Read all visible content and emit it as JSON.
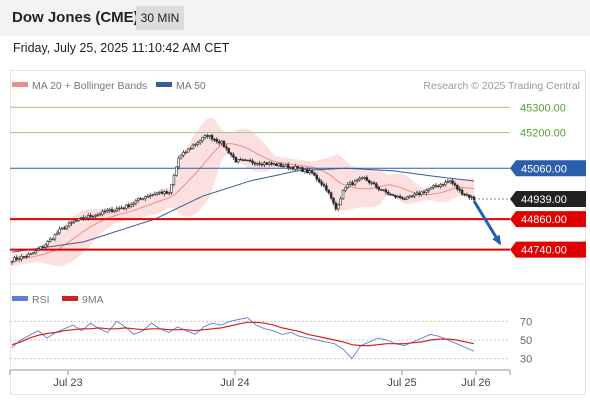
{
  "header": {
    "title": "Dow Jones (CME)",
    "timeframe": "30 MIN"
  },
  "datetime": "Friday, July 25, 2025 11:10:42 AM CET",
  "copyright": "Research © 2025 Trading Central",
  "colors": {
    "candle_up": "#333333",
    "candle_down": "#333333",
    "bollinger_fill": "#fbd5d5",
    "ma20": "#f08b8b",
    "ma50": "#3b5b9a",
    "resistance": "#9cc97a",
    "pivot": "#2b5fae",
    "support": "#e00000",
    "last_price": "#222222",
    "rsi": "#5b7fd6",
    "rsi_ma": "#d62020",
    "arrow": "#2560b0"
  },
  "chart_data": [
    {
      "type": "candlestick",
      "legend": [
        {
          "label": "MA 20 + Bollinger Bands",
          "color": "#f08b8b"
        },
        {
          "label": "MA 50",
          "color": "#3b5b9a"
        }
      ],
      "x_ticks": [
        "Jul 23",
        "Jul 24",
        "Jul 25",
        "Jul 26"
      ],
      "ylim": [
        44640,
        45360
      ],
      "levels": [
        {
          "label": "45300.00",
          "value": 45300,
          "kind": "resistance"
        },
        {
          "label": "45200.00",
          "value": 45200,
          "kind": "resistance"
        },
        {
          "label": "45060.00",
          "value": 45060,
          "kind": "pivot"
        },
        {
          "label": "44939.00",
          "value": 44939,
          "kind": "last"
        },
        {
          "label": "44860.00",
          "value": 44860,
          "kind": "support"
        },
        {
          "label": "44740.00",
          "value": 44740,
          "kind": "support"
        }
      ],
      "price_path": [
        [
          0,
          44700
        ],
        [
          8,
          44720
        ],
        [
          14,
          44760
        ],
        [
          20,
          44815
        ],
        [
          26,
          44850
        ],
        [
          32,
          44870
        ],
        [
          40,
          44890
        ],
        [
          48,
          44910
        ],
        [
          56,
          44950
        ],
        [
          62,
          44965
        ],
        [
          66,
          44960
        ],
        [
          70,
          45100
        ],
        [
          76,
          45150
        ],
        [
          82,
          45190
        ],
        [
          88,
          45160
        ],
        [
          94,
          45090
        ],
        [
          100,
          45085
        ],
        [
          106,
          45080
        ],
        [
          114,
          45070
        ],
        [
          120,
          45060
        ],
        [
          126,
          45040
        ],
        [
          132,
          44980
        ],
        [
          136,
          44900
        ],
        [
          140,
          44990
        ],
        [
          148,
          45020
        ],
        [
          154,
          44980
        ],
        [
          160,
          44950
        ],
        [
          166,
          44940
        ],
        [
          172,
          44965
        ],
        [
          178,
          44990
        ],
        [
          184,
          45010
        ],
        [
          188,
          44970
        ],
        [
          194,
          44939
        ]
      ],
      "ma50_path": [
        [
          0,
          44730
        ],
        [
          30,
          44770
        ],
        [
          60,
          44860
        ],
        [
          80,
          44950
        ],
        [
          100,
          45010
        ],
        [
          120,
          45050
        ],
        [
          140,
          45060
        ],
        [
          160,
          45050
        ],
        [
          180,
          45025
        ],
        [
          194,
          45010
        ]
      ],
      "forecast": {
        "from": 44939,
        "to": 44740
      }
    },
    {
      "type": "line",
      "legend": [
        {
          "label": "RSI",
          "color": "#5b7fd6"
        },
        {
          "label": "9MA",
          "color": "#d62020"
        }
      ],
      "y_ticks": [
        "70",
        "50",
        "30"
      ],
      "ylim": [
        20,
        80
      ],
      "guides": [
        70,
        50,
        30
      ],
      "series": [
        {
          "values": [
            42,
            50,
            55,
            60,
            52,
            58,
            62,
            66,
            60,
            68,
            62,
            58,
            70,
            64,
            56,
            60,
            68,
            62,
            58,
            64,
            60,
            56,
            64,
            68,
            66,
            70,
            72,
            74,
            66,
            62,
            60,
            56,
            58,
            54,
            52,
            50,
            48,
            46,
            40,
            30,
            44,
            48,
            52,
            50,
            46,
            44,
            48,
            52,
            56,
            54,
            50,
            46,
            42,
            38
          ]
        },
        {
          "values": [
            45,
            48,
            52,
            55,
            57,
            58,
            60,
            61,
            62,
            62,
            63,
            62,
            62,
            63,
            62,
            61,
            62,
            62,
            61,
            61,
            61,
            60,
            61,
            62,
            63,
            65,
            67,
            69,
            69,
            68,
            66,
            63,
            61,
            59,
            56,
            54,
            52,
            50,
            48,
            45,
            44,
            44,
            45,
            46,
            46,
            46,
            47,
            48,
            50,
            51,
            51,
            50,
            48,
            46
          ]
        }
      ]
    }
  ]
}
